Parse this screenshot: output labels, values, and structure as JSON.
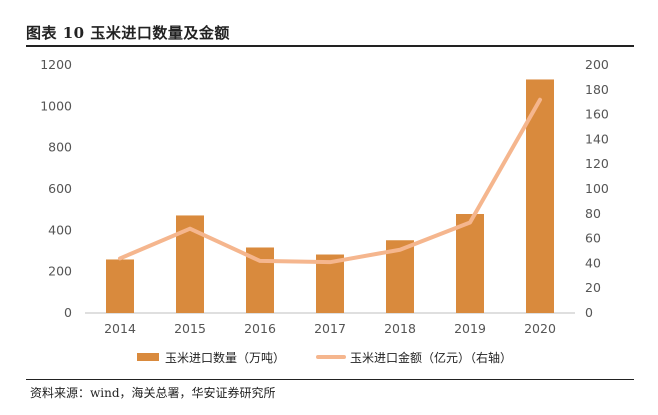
{
  "title": "图表 10  玉米进口数量及金额",
  "source": "资料来源：wind，海关总署，华安证券研究所",
  "chart_data": {
    "type": "bar+line",
    "categories": [
      "2014",
      "2015",
      "2016",
      "2017",
      "2018",
      "2019",
      "2020"
    ],
    "series": [
      {
        "name": "玉米进口数量（万吨）",
        "type": "bar",
        "axis": "left",
        "color": "#D98A3D",
        "values": [
          259,
          472,
          317,
          283,
          352,
          479,
          1130
        ]
      },
      {
        "name": "玉米进口金额（亿元）（右轴）",
        "type": "line",
        "axis": "right",
        "color": "#F5B68E",
        "values": [
          44,
          68,
          42,
          41,
          51,
          73,
          172
        ]
      }
    ],
    "y_left": {
      "min": 0,
      "max": 1200,
      "ticks": [
        "0",
        "200",
        "400",
        "600",
        "800",
        "1000",
        "1200"
      ]
    },
    "y_right": {
      "min": 0,
      "max": 200,
      "ticks": [
        "0",
        "20",
        "40",
        "60",
        "80",
        "100",
        "120",
        "140",
        "160",
        "180",
        "200"
      ]
    },
    "grid": false,
    "legend": "bottom"
  }
}
